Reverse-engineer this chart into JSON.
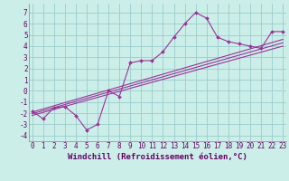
{
  "bg_color": "#cceee8",
  "grid_color": "#99cccc",
  "line_color": "#993399",
  "marker_color": "#993399",
  "xlabel": "Windchill (Refroidissement éolien,°C)",
  "xlabel_fontsize": 6.5,
  "ylabel_ticks": [
    -4,
    -3,
    -2,
    -1,
    0,
    1,
    2,
    3,
    4,
    5,
    6,
    7
  ],
  "xlim": [
    -0.3,
    23.3
  ],
  "ylim": [
    -4.5,
    7.8
  ],
  "main_x": [
    0,
    1,
    2,
    3,
    4,
    5,
    6,
    7,
    8,
    9,
    10,
    11,
    12,
    13,
    14,
    15,
    16,
    17,
    18,
    19,
    20,
    21,
    22,
    23
  ],
  "main_y": [
    -1.8,
    -2.5,
    -1.5,
    -1.4,
    -2.2,
    -3.5,
    -3.0,
    0.0,
    -0.5,
    2.5,
    2.7,
    2.7,
    3.5,
    4.8,
    6.0,
    7.0,
    6.5,
    4.8,
    4.4,
    4.2,
    4.0,
    3.8,
    5.3,
    5.3
  ],
  "reg_lines": [
    {
      "x": [
        0,
        23
      ],
      "y": [
        -1.9,
        4.6
      ]
    },
    {
      "x": [
        0,
        23
      ],
      "y": [
        -2.05,
        4.3
      ]
    },
    {
      "x": [
        0,
        23
      ],
      "y": [
        -2.2,
        4.0
      ]
    }
  ],
  "xtick_labels": [
    "0",
    "1",
    "2",
    "3",
    "4",
    "5",
    "6",
    "7",
    "8",
    "9",
    "10",
    "11",
    "12",
    "13",
    "14",
    "15",
    "16",
    "17",
    "18",
    "19",
    "20",
    "21",
    "22",
    "23"
  ],
  "tick_fontsize": 5.5,
  "ylabel_fontsize": 5.5
}
